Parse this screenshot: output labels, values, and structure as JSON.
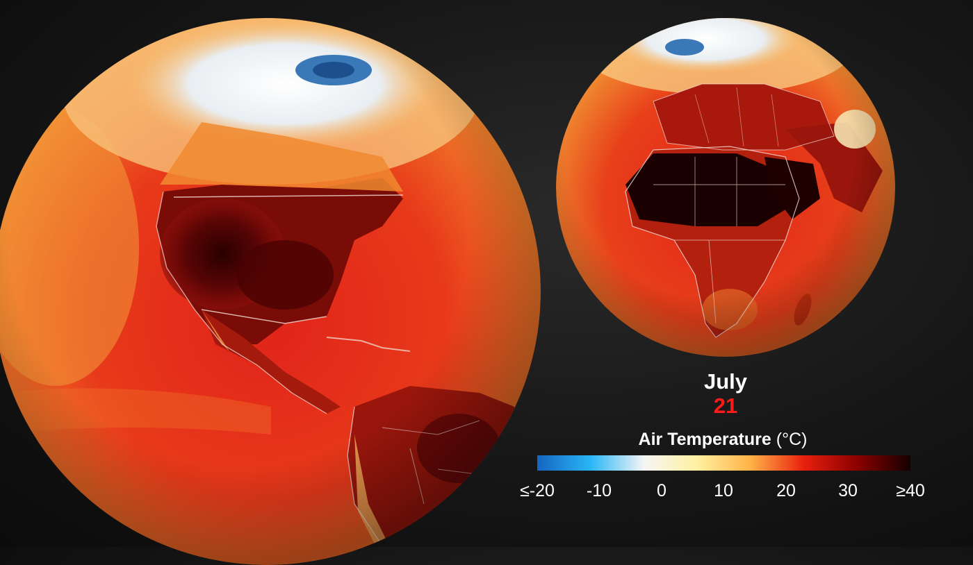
{
  "date": {
    "month": "July",
    "day": "21"
  },
  "legend": {
    "title_bold": "Air Temperature",
    "title_unit": "(°C)",
    "tick_labels": [
      "≤-20",
      "-10",
      "0",
      "10",
      "20",
      "30",
      "≥40"
    ],
    "colors": [
      "#1565c0",
      "#29b6f6",
      "#f5f5f5",
      "#fff0a0",
      "#ffb347",
      "#e8200f",
      "#8b0000",
      "#140000"
    ]
  },
  "globes": [
    {
      "name": "americas-globe",
      "region": "North and South America"
    },
    {
      "name": "africa-europe-globe",
      "region": "Africa and Europe"
    }
  ]
}
